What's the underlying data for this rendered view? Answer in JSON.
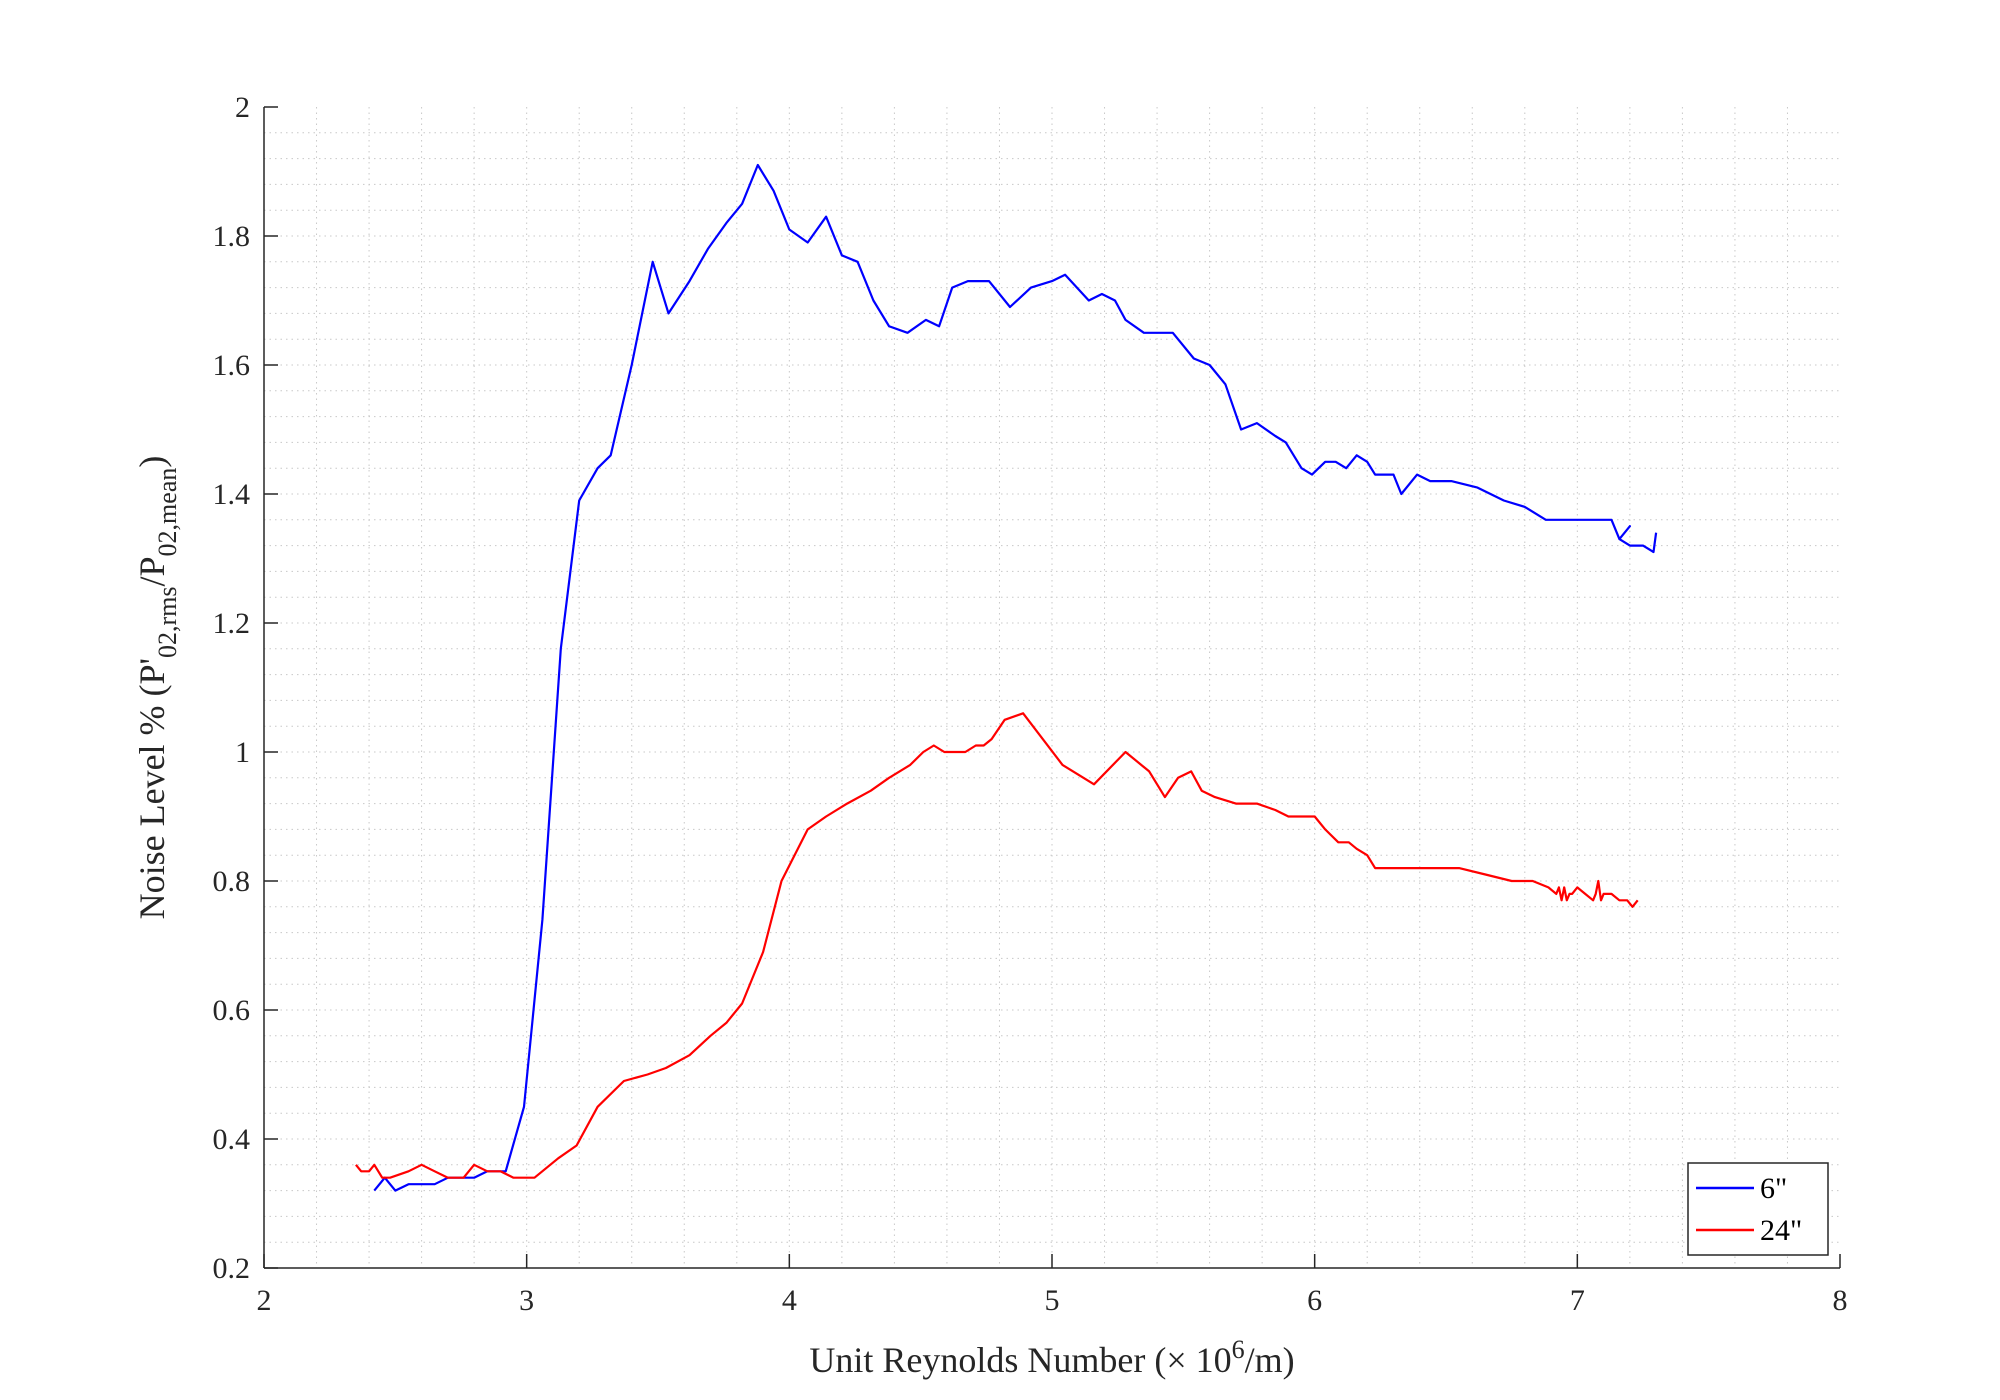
{
  "chart_data": {
    "type": "line",
    "xlabel": {
      "text": "Unit Reynolds Number (× 10/m)",
      "prefix": "Unit Reynolds Number (× 10",
      "sup": "6",
      "suffix": "/m)"
    },
    "ylabel": {
      "text": "Noise Level % (P'02,rms/P02,mean)",
      "prefix": "Noise Level % (P'",
      "sub1": "02,rms",
      "mid": "/P",
      "sub2": "02,mean",
      "suffix": ")"
    },
    "xlim": [
      2,
      8
    ],
    "ylim": [
      0.2,
      2
    ],
    "xticks": [
      2,
      3,
      4,
      5,
      6,
      7,
      8
    ],
    "yticks": [
      0.2,
      0.4,
      0.6,
      0.8,
      1.0,
      1.2,
      1.4,
      1.6,
      1.8,
      2.0
    ],
    "xtick_labels": [
      "2",
      "3",
      "4",
      "5",
      "6",
      "7",
      "8"
    ],
    "ytick_labels": [
      "0.2",
      "0.4",
      "0.6",
      "0.8",
      "1",
      "1.2",
      "1.4",
      "1.6",
      "1.8",
      "2"
    ],
    "grid": "minor dotted",
    "legend_position": "bottom-right",
    "series": [
      {
        "name": "6\"",
        "color": "#0000ff",
        "x": [
          2.42,
          2.46,
          2.5,
          2.55,
          2.6,
          2.65,
          2.7,
          2.75,
          2.8,
          2.85,
          2.9,
          2.92,
          2.99,
          3.06,
          3.13,
          3.2,
          3.27,
          3.32,
          3.4,
          3.48,
          3.54,
          3.62,
          3.69,
          3.76,
          3.82,
          3.88,
          3.94,
          4.0,
          4.07,
          4.14,
          4.2,
          4.26,
          4.32,
          4.38,
          4.45,
          4.52,
          4.57,
          4.62,
          4.68,
          4.76,
          4.84,
          4.92,
          5.0,
          5.05,
          5.14,
          5.19,
          5.24,
          5.28,
          5.35,
          5.46,
          5.54,
          5.6,
          5.66,
          5.72,
          5.78,
          5.85,
          5.89,
          5.95,
          5.99,
          6.04,
          6.08,
          6.12,
          6.16,
          6.2,
          6.23,
          6.27,
          6.3,
          6.33,
          6.39,
          6.44,
          6.52,
          6.62,
          6.72,
          6.8,
          6.88,
          6.96,
          7.04,
          7.13,
          7.16,
          7.2,
          7.16,
          7.2,
          7.25,
          7.29,
          7.3
        ],
        "y": [
          0.32,
          0.34,
          0.32,
          0.33,
          0.33,
          0.33,
          0.34,
          0.34,
          0.34,
          0.35,
          0.35,
          0.35,
          0.45,
          0.74,
          1.16,
          1.39,
          1.44,
          1.46,
          1.6,
          1.76,
          1.68,
          1.73,
          1.78,
          1.82,
          1.85,
          1.91,
          1.87,
          1.81,
          1.79,
          1.83,
          1.77,
          1.76,
          1.7,
          1.66,
          1.65,
          1.67,
          1.66,
          1.72,
          1.73,
          1.73,
          1.69,
          1.72,
          1.73,
          1.74,
          1.7,
          1.71,
          1.7,
          1.67,
          1.65,
          1.65,
          1.61,
          1.6,
          1.57,
          1.5,
          1.51,
          1.49,
          1.48,
          1.44,
          1.43,
          1.45,
          1.45,
          1.44,
          1.46,
          1.45,
          1.43,
          1.43,
          1.43,
          1.4,
          1.43,
          1.42,
          1.42,
          1.41,
          1.39,
          1.38,
          1.36,
          1.36,
          1.36,
          1.36,
          1.33,
          1.35,
          1.33,
          1.32,
          1.32,
          1.31,
          1.34
        ]
      },
      {
        "name": "24\"",
        "color": "#ff0000",
        "x": [
          2.35,
          2.37,
          2.4,
          2.42,
          2.45,
          2.48,
          2.55,
          2.6,
          2.65,
          2.7,
          2.76,
          2.8,
          2.85,
          2.9,
          2.95,
          3.03,
          3.12,
          3.19,
          3.27,
          3.37,
          3.46,
          3.53,
          3.62,
          3.7,
          3.76,
          3.82,
          3.9,
          3.97,
          4.07,
          4.14,
          4.22,
          4.31,
          4.38,
          4.46,
          4.51,
          4.55,
          4.59,
          4.63,
          4.67,
          4.71,
          4.74,
          4.77,
          4.82,
          4.89,
          5.04,
          5.16,
          5.28,
          5.37,
          5.43,
          5.48,
          5.53,
          5.57,
          5.62,
          5.7,
          5.78,
          5.85,
          5.9,
          5.95,
          6.0,
          6.04,
          6.09,
          6.13,
          6.16,
          6.2,
          6.23,
          6.32,
          6.42,
          6.55,
          6.65,
          6.75,
          6.83,
          6.89,
          6.92,
          6.93,
          6.94,
          6.95,
          6.96,
          6.97,
          6.98,
          7.0,
          7.03,
          7.06,
          7.07,
          7.08,
          7.09,
          7.1,
          7.13,
          7.16,
          7.19,
          7.21,
          7.23
        ],
        "y": [
          0.36,
          0.35,
          0.35,
          0.36,
          0.34,
          0.34,
          0.35,
          0.36,
          0.35,
          0.34,
          0.34,
          0.36,
          0.35,
          0.35,
          0.34,
          0.34,
          0.37,
          0.39,
          0.45,
          0.49,
          0.5,
          0.51,
          0.53,
          0.56,
          0.58,
          0.61,
          0.69,
          0.8,
          0.88,
          0.9,
          0.92,
          0.94,
          0.96,
          0.98,
          1.0,
          1.01,
          1.0,
          1.0,
          1.0,
          1.01,
          1.01,
          1.02,
          1.05,
          1.06,
          0.98,
          0.95,
          1.0,
          0.97,
          0.93,
          0.96,
          0.97,
          0.94,
          0.93,
          0.92,
          0.92,
          0.91,
          0.9,
          0.9,
          0.9,
          0.88,
          0.86,
          0.86,
          0.85,
          0.84,
          0.82,
          0.82,
          0.82,
          0.82,
          0.81,
          0.8,
          0.8,
          0.79,
          0.78,
          0.79,
          0.77,
          0.79,
          0.77,
          0.78,
          0.78,
          0.79,
          0.78,
          0.77,
          0.78,
          0.8,
          0.77,
          0.78,
          0.78,
          0.77,
          0.77,
          0.76,
          0.77
        ]
      }
    ]
  }
}
